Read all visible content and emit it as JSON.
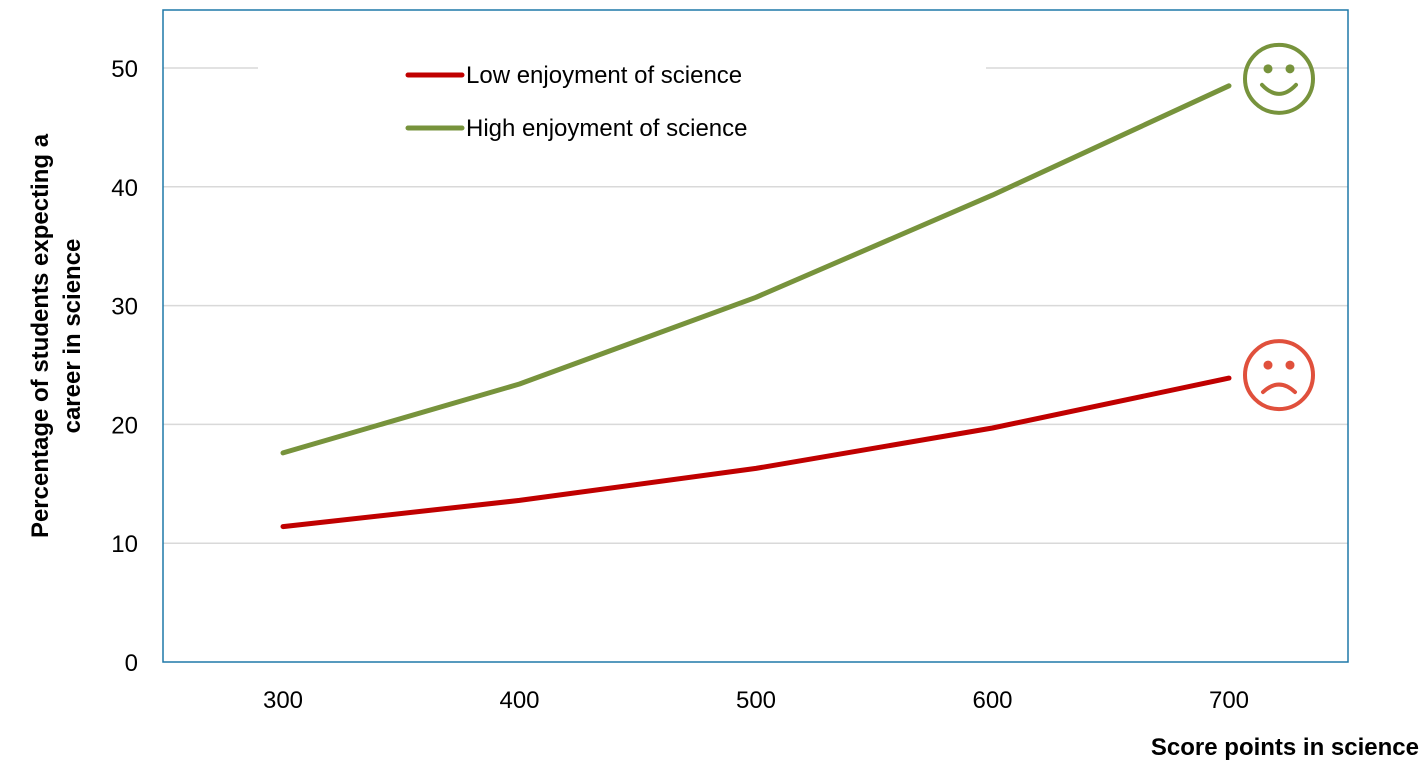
{
  "chart_data": {
    "type": "line",
    "title": "",
    "xlabel": "Score points in science",
    "ylabel_lines": [
      "Percentage of students expecting a",
      "career in science"
    ],
    "x": [
      300,
      400,
      500,
      600,
      700
    ],
    "x_ticks": [
      "300",
      "400",
      "500",
      "600",
      "700"
    ],
    "y_ticks": [
      "0",
      "10",
      "20",
      "30",
      "40",
      "50"
    ],
    "ylim": [
      0,
      50
    ],
    "grid": "horizontal",
    "legend_position": "top-center",
    "series": [
      {
        "name": "Low enjoyment of science",
        "color": "#C00000",
        "values": [
          11.4,
          13.6,
          16.3,
          19.7,
          23.9
        ],
        "marker_icon": "frown-face-icon",
        "icon_color": "#E0503C"
      },
      {
        "name": "High enjoyment of science",
        "color": "#77933C",
        "values": [
          17.6,
          23.4,
          30.7,
          39.3,
          48.5
        ],
        "marker_icon": "smile-face-icon",
        "icon_color": "#77933C"
      }
    ],
    "frame_color": "#1F78A8",
    "grid_color": "#D9D9D9"
  }
}
